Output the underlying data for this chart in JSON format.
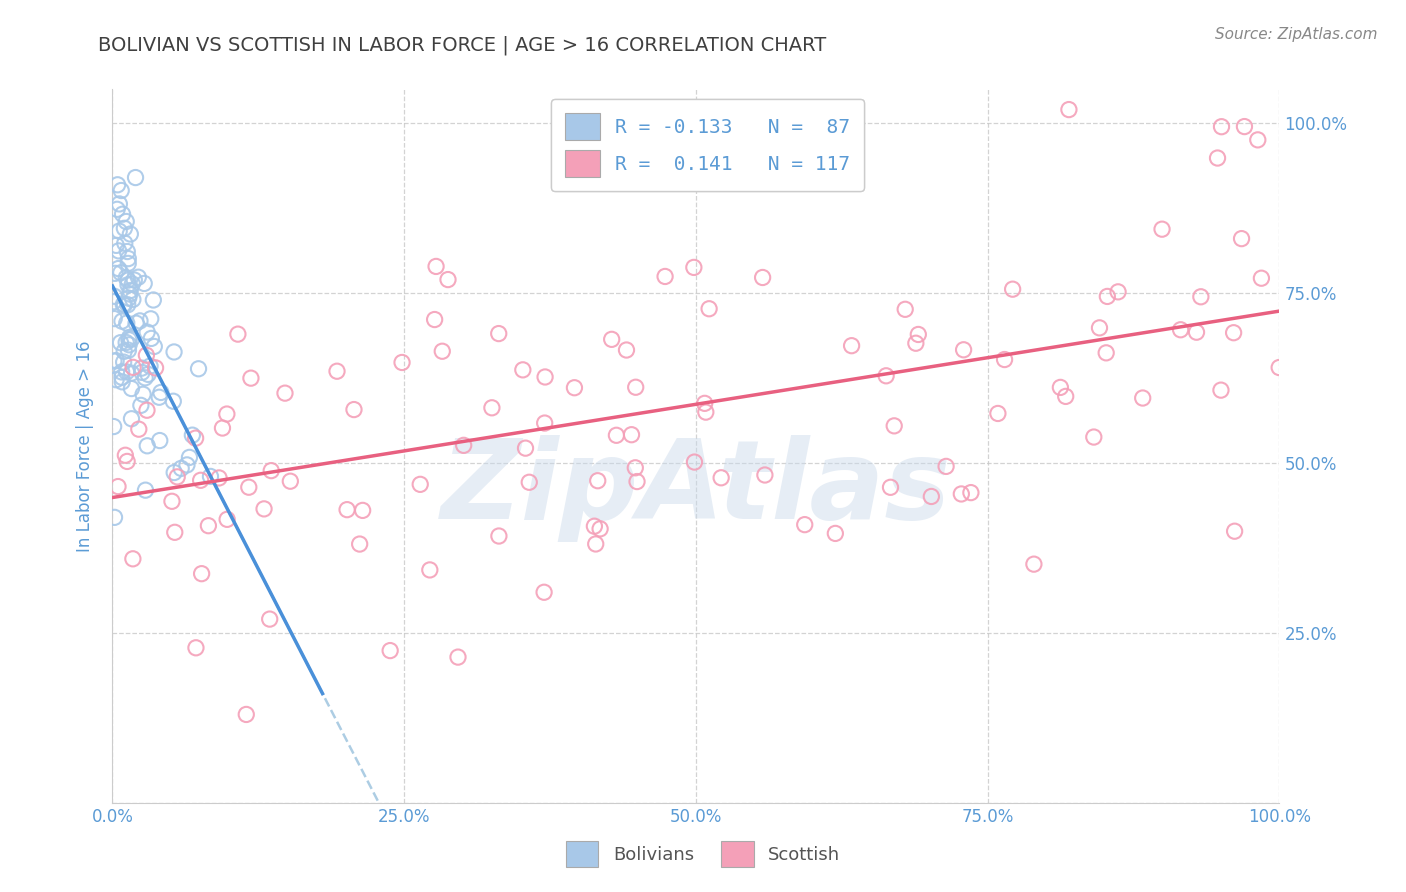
{
  "title": "BOLIVIAN VS SCOTTISH IN LABOR FORCE | AGE > 16 CORRELATION CHART",
  "source_text": "Source: ZipAtlas.com",
  "ylabel": "In Labor Force | Age > 16",
  "xlim": [
    0.0,
    1.0
  ],
  "ylim": [
    0.0,
    1.05
  ],
  "bolivian_R": -0.133,
  "bolivian_N": 87,
  "scottish_R": 0.141,
  "scottish_N": 117,
  "bolivian_color": "#a8c8e8",
  "scottish_color": "#f4a0b8",
  "bolivian_trend_color": "#4a90d9",
  "scottish_trend_color": "#e86080",
  "bolivian_dash_color": "#8ab8d8",
  "watermark": "ZipAtlas",
  "watermark_color": "#c8d8ea",
  "background_color": "#ffffff",
  "grid_color": "#c8c8c8",
  "title_color": "#404040",
  "axis_label_color": "#5b9bd5",
  "tick_label_color": "#5b9bd5",
  "legend_r_color": "#5b9bd5",
  "right_tick_color": "#5b9bd5",
  "x_ticks": [
    0.0,
    0.25,
    0.5,
    0.75,
    1.0
  ],
  "y_ticks": [
    0.0,
    0.25,
    0.5,
    0.75,
    1.0
  ],
  "right_y_ticks": [
    0.25,
    0.5,
    0.75,
    1.0
  ]
}
